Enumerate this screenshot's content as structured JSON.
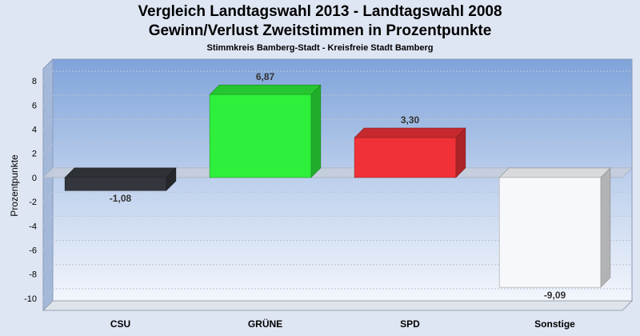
{
  "chart_data": {
    "type": "bar",
    "title": "Vergleich Landtagswahl 2013 - Landtagswahl 2008",
    "subtitle": "Gewinn/Verlust Zweitstimmen in Prozentpunkte",
    "subsubtitle": "Stimmkreis Bamberg-Stadt - Kreisfreie Stadt Bamberg",
    "ylabel": "Prozentpunkte",
    "xlabel": "",
    "ylim": [
      -11,
      9
    ],
    "yticks": [
      8,
      6,
      4,
      2,
      0,
      -2,
      -4,
      -6,
      -8,
      -10
    ],
    "grid": true,
    "categories": [
      "CSU",
      "GRÜNE",
      "SPD",
      "Sonstige"
    ],
    "values": [
      -1.08,
      6.87,
      3.3,
      -9.09
    ],
    "value_labels": [
      "-1,08",
      "6,87",
      "3,30",
      "-9,09"
    ],
    "colors": [
      "#33363c",
      "#2ef03c",
      "#f03238",
      "#f7f8fb"
    ]
  }
}
